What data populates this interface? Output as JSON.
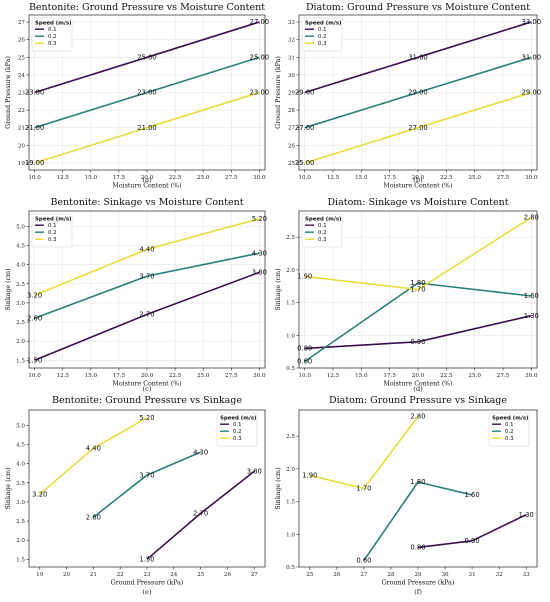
{
  "colors": {
    "s1": "#3b0f4f",
    "s2": "#2a7f7a",
    "s3": "#e6dd3a"
  },
  "chart_data": [
    {
      "type": "line",
      "title": "Bentonite: Ground Pressure vs Moisture Content",
      "xlabel": "Moisture Content (%)",
      "ylabel": "Ground Pressure (kPa)",
      "caption": "(a)",
      "xlim": [
        9.5,
        30.5
      ],
      "ylim": [
        18.6,
        27.4
      ],
      "xticks": [
        "10.0",
        "12.5",
        "15.0",
        "17.5",
        "20.0",
        "22.5",
        "25.0",
        "27.5",
        "30.0"
      ],
      "xtick_values": [
        10,
        12.5,
        15,
        17.5,
        20,
        22.5,
        25,
        27.5,
        30
      ],
      "yticks": [
        "19",
        "20",
        "21",
        "22",
        "23",
        "24",
        "25",
        "26",
        "27"
      ],
      "ytick_values": [
        19,
        20,
        21,
        22,
        23,
        24,
        25,
        26,
        27
      ],
      "grid": true,
      "legend": "top-left",
      "legend_title": "Speed (m/s)",
      "series": [
        {
          "name": "0.1",
          "x": [
            10,
            20,
            30
          ],
          "y": [
            23,
            25,
            27
          ],
          "labels": [
            "23.00",
            "25.00",
            "27.00"
          ]
        },
        {
          "name": "0.2",
          "x": [
            10,
            20,
            30
          ],
          "y": [
            21,
            23,
            25
          ],
          "labels": [
            "21.00",
            "23.00",
            "25.00"
          ]
        },
        {
          "name": "0.3",
          "x": [
            10,
            20,
            30
          ],
          "y": [
            19,
            21,
            23
          ],
          "labels": [
            "19.00",
            "21.00",
            "23.00"
          ]
        }
      ]
    },
    {
      "type": "line",
      "title": "Diatom: Ground Pressure vs Moisture Content",
      "xlabel": "Moisture Content (%)",
      "ylabel": "Ground Pressure (kPa)",
      "caption": "(b)",
      "xlim": [
        9.5,
        30.5
      ],
      "ylim": [
        24.6,
        33.4
      ],
      "xticks": [
        "10.0",
        "12.5",
        "15.0",
        "17.5",
        "20.0",
        "22.5",
        "25.0",
        "27.5",
        "30.0"
      ],
      "xtick_values": [
        10,
        12.5,
        15,
        17.5,
        20,
        22.5,
        25,
        27.5,
        30
      ],
      "yticks": [
        "25",
        "26",
        "27",
        "28",
        "29",
        "30",
        "31",
        "32",
        "33"
      ],
      "ytick_values": [
        25,
        26,
        27,
        28,
        29,
        30,
        31,
        32,
        33
      ],
      "grid": true,
      "legend": "top-left",
      "legend_title": "Speed (m/s)",
      "series": [
        {
          "name": "0.1",
          "x": [
            10,
            20,
            30
          ],
          "y": [
            29,
            31,
            33
          ],
          "labels": [
            "29.00",
            "31.00",
            "33.00"
          ]
        },
        {
          "name": "0.2",
          "x": [
            10,
            20,
            30
          ],
          "y": [
            27,
            29,
            31
          ],
          "labels": [
            "27.00",
            "29.00",
            "31.00"
          ]
        },
        {
          "name": "0.3",
          "x": [
            10,
            20,
            30
          ],
          "y": [
            25,
            27,
            29
          ],
          "labels": [
            "25.00",
            "27.00",
            "29.00"
          ]
        }
      ]
    },
    {
      "type": "line",
      "title": "Bentonite: Sinkage vs Moisture Content",
      "xlabel": "Moisture Content (%)",
      "ylabel": "Sinkage (cm)",
      "caption": "(c)",
      "xlim": [
        9.5,
        30.5
      ],
      "ylim": [
        1.3,
        5.4
      ],
      "xticks": [
        "10.0",
        "12.5",
        "15.0",
        "17.5",
        "20.0",
        "22.5",
        "25.0",
        "27.5",
        "30.0"
      ],
      "xtick_values": [
        10,
        12.5,
        15,
        17.5,
        20,
        22.5,
        25,
        27.5,
        30
      ],
      "yticks": [
        "1.5",
        "2.0",
        "2.5",
        "3.0",
        "3.5",
        "4.0",
        "4.5",
        "5.0"
      ],
      "ytick_values": [
        1.5,
        2,
        2.5,
        3,
        3.5,
        4,
        4.5,
        5
      ],
      "grid": true,
      "legend": "top-left",
      "legend_title": "Speed (m/s)",
      "series": [
        {
          "name": "0.1",
          "x": [
            10,
            20,
            30
          ],
          "y": [
            1.5,
            2.7,
            3.8
          ],
          "labels": [
            "1.50",
            "2.70",
            "3.80"
          ]
        },
        {
          "name": "0.2",
          "x": [
            10,
            20,
            30
          ],
          "y": [
            2.6,
            3.7,
            4.3
          ],
          "labels": [
            "2.60",
            "3.70",
            "4.30"
          ]
        },
        {
          "name": "0.3",
          "x": [
            10,
            20,
            30
          ],
          "y": [
            3.2,
            4.4,
            5.2
          ],
          "labels": [
            "3.20",
            "4.40",
            "5.20"
          ]
        }
      ]
    },
    {
      "type": "line",
      "title": "Diatom: Sinkage vs Moisture Content",
      "xlabel": "Moisture Content (%)",
      "ylabel": "Sinkage (cm)",
      "caption": "(d)",
      "xlim": [
        9.5,
        30.5
      ],
      "ylim": [
        0.5,
        2.9
      ],
      "xticks": [
        "10.0",
        "12.5",
        "15.0",
        "17.5",
        "20.0",
        "22.5",
        "25.0",
        "27.5",
        "30.0"
      ],
      "xtick_values": [
        10,
        12.5,
        15,
        17.5,
        20,
        22.5,
        25,
        27.5,
        30
      ],
      "yticks": [
        "0.5",
        "1.0",
        "1.5",
        "2.0",
        "2.5"
      ],
      "ytick_values": [
        0.5,
        1,
        1.5,
        2,
        2.5
      ],
      "grid": true,
      "legend": "top-left",
      "legend_title": "Speed (m/s)",
      "series": [
        {
          "name": "0.1",
          "x": [
            10,
            20,
            30
          ],
          "y": [
            0.8,
            0.9,
            1.3
          ],
          "labels": [
            "0.80",
            "0.90",
            "1.30"
          ]
        },
        {
          "name": "0.2",
          "x": [
            10,
            20,
            30
          ],
          "y": [
            0.6,
            1.8,
            1.6
          ],
          "labels": [
            "0.60",
            "1.80",
            "1.60"
          ]
        },
        {
          "name": "0.3",
          "x": [
            10,
            20,
            30
          ],
          "y": [
            1.9,
            1.7,
            2.8
          ],
          "labels": [
            "1.90",
            "1.70",
            "2.80"
          ]
        }
      ]
    },
    {
      "type": "line",
      "title": "Bentonite: Ground Pressure vs Sinkage",
      "xlabel": "Ground Pressure (kPa)",
      "ylabel": "Sinkage (cm)",
      "caption": "(e)",
      "xlim": [
        18.6,
        27.4
      ],
      "ylim": [
        1.3,
        5.4
      ],
      "xticks": [
        "19",
        "20",
        "21",
        "22",
        "23",
        "24",
        "25",
        "26",
        "27"
      ],
      "xtick_values": [
        19,
        20,
        21,
        22,
        23,
        24,
        25,
        26,
        27
      ],
      "yticks": [
        "1.5",
        "2.0",
        "2.5",
        "3.0",
        "3.5",
        "4.0",
        "4.5",
        "5.0"
      ],
      "ytick_values": [
        1.5,
        2,
        2.5,
        3,
        3.5,
        4,
        4.5,
        5
      ],
      "grid": false,
      "legend": "top-right",
      "legend_title": "Speed (m/s)",
      "series": [
        {
          "name": "0.1",
          "x": [
            23,
            25,
            27
          ],
          "y": [
            1.5,
            2.7,
            3.8
          ],
          "labels": [
            "1.50",
            "2.70",
            "3.80"
          ]
        },
        {
          "name": "0.2",
          "x": [
            21,
            23,
            25
          ],
          "y": [
            2.6,
            3.7,
            4.3
          ],
          "labels": [
            "2.60",
            "3.70",
            "4.30"
          ]
        },
        {
          "name": "0.3",
          "x": [
            19,
            21,
            23
          ],
          "y": [
            3.2,
            4.4,
            5.2
          ],
          "labels": [
            "3.20",
            "4.40",
            "5.20"
          ]
        }
      ]
    },
    {
      "type": "line",
      "title": "Diatom: Ground Pressure vs Sinkage",
      "xlabel": "Ground Pressure (kPa)",
      "ylabel": "Sinkage (cm)",
      "caption": "(f)",
      "xlim": [
        24.6,
        33.4
      ],
      "ylim": [
        0.5,
        2.9
      ],
      "xticks": [
        "25",
        "26",
        "27",
        "28",
        "29",
        "30",
        "31",
        "32",
        "33"
      ],
      "xtick_values": [
        25,
        26,
        27,
        28,
        29,
        30,
        31,
        32,
        33
      ],
      "yticks": [
        "0.5",
        "1.0",
        "1.5",
        "2.0",
        "2.5"
      ],
      "ytick_values": [
        0.5,
        1,
        1.5,
        2,
        2.5
      ],
      "grid": false,
      "legend": "top-right",
      "legend_title": "Speed (m/s)",
      "series": [
        {
          "name": "0.1",
          "x": [
            29,
            31,
            33
          ],
          "y": [
            0.8,
            0.9,
            1.3
          ],
          "labels": [
            "0.80",
            "0.90",
            "1.30"
          ]
        },
        {
          "name": "0.2",
          "x": [
            27,
            29,
            31
          ],
          "y": [
            0.6,
            1.8,
            1.6
          ],
          "labels": [
            "0.60",
            "1.80",
            "1.60"
          ]
        },
        {
          "name": "0.3",
          "x": [
            25,
            27,
            29
          ],
          "y": [
            1.9,
            1.7,
            2.8
          ],
          "labels": [
            "1.90",
            "1.70",
            "2.80"
          ]
        }
      ]
    }
  ]
}
